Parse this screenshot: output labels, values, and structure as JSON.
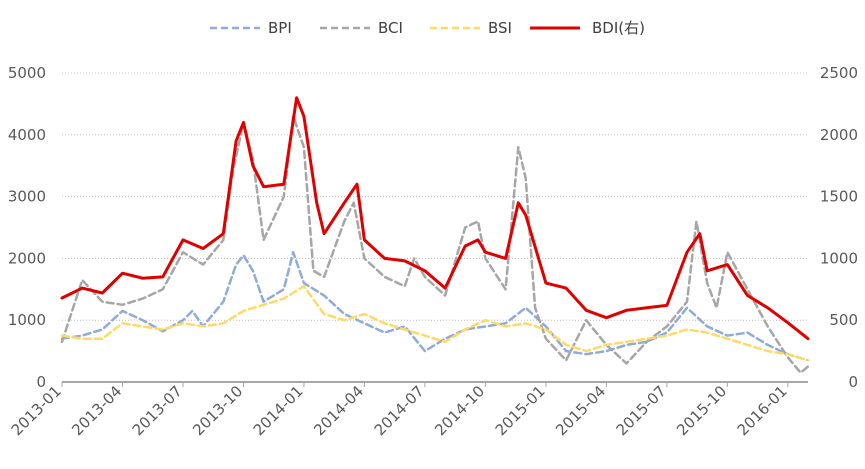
{
  "chart_data": {
    "type": "line",
    "legend_position": "top",
    "grid": "horizontal-dotted",
    "x_ticks": [
      "2013-01",
      "2013-04",
      "2013-07",
      "2013-10",
      "2014-01",
      "2014-04",
      "2014-07",
      "2014-10",
      "2015-01",
      "2015-04",
      "2015-07",
      "2015-10",
      "2016-01"
    ],
    "x_range": [
      "2013-01",
      "2016-02"
    ],
    "y_left": {
      "min": 0,
      "max": 5000,
      "ticks": [
        "0",
        "1000",
        "2000",
        "3000",
        "4000",
        "5000"
      ]
    },
    "y_right": {
      "min": 0,
      "max": 2500,
      "ticks": [
        "0",
        "500",
        "1000",
        "1500",
        "2000",
        "2500"
      ]
    },
    "series": [
      {
        "name": "BPI",
        "axis": "left",
        "color": "#8faadc",
        "dash": "dashed",
        "points": [
          [
            "2013-01",
            700
          ],
          [
            "2013-02",
            750
          ],
          [
            "2013-03",
            850
          ],
          [
            "2013-04",
            1150
          ],
          [
            "2013-05",
            1000
          ],
          [
            "2013-06",
            820
          ],
          [
            "2013-07",
            1000
          ],
          [
            "2013-07-15",
            1150
          ],
          [
            "2013-08",
            900
          ],
          [
            "2013-09",
            1300
          ],
          [
            "2013-09-20",
            1900
          ],
          [
            "2013-10",
            2050
          ],
          [
            "2013-10-15",
            1800
          ],
          [
            "2013-11",
            1300
          ],
          [
            "2013-12",
            1500
          ],
          [
            "2013-12-15",
            2100
          ],
          [
            "2014-01",
            1600
          ],
          [
            "2014-02",
            1400
          ],
          [
            "2014-03",
            1100
          ],
          [
            "2014-04",
            950
          ],
          [
            "2014-05",
            800
          ],
          [
            "2014-06",
            900
          ],
          [
            "2014-07",
            500
          ],
          [
            "2014-08",
            700
          ],
          [
            "2014-09",
            850
          ],
          [
            "2014-10",
            900
          ],
          [
            "2014-11",
            950
          ],
          [
            "2014-12",
            1200
          ],
          [
            "2015-01",
            900
          ],
          [
            "2015-02",
            500
          ],
          [
            "2015-03",
            450
          ],
          [
            "2015-04",
            500
          ],
          [
            "2015-05",
            600
          ],
          [
            "2015-06",
            650
          ],
          [
            "2015-07",
            800
          ],
          [
            "2015-08",
            1200
          ],
          [
            "2015-09",
            900
          ],
          [
            "2015-10",
            750
          ],
          [
            "2015-11",
            800
          ],
          [
            "2015-12",
            600
          ],
          [
            "2016-01",
            450
          ],
          [
            "2016-02",
            350
          ]
        ]
      },
      {
        "name": "BCI",
        "axis": "left",
        "color": "#a6a6a6",
        "dash": "dashed",
        "points": [
          [
            "2013-01",
            650
          ],
          [
            "2013-02",
            1650
          ],
          [
            "2013-03",
            1300
          ],
          [
            "2013-04",
            1250
          ],
          [
            "2013-05",
            1350
          ],
          [
            "2013-06",
            1500
          ],
          [
            "2013-07",
            2100
          ],
          [
            "2013-08",
            1900
          ],
          [
            "2013-09",
            2300
          ],
          [
            "2013-09-15",
            3400
          ],
          [
            "2013-10",
            4200
          ],
          [
            "2013-10-15",
            3600
          ],
          [
            "2013-11",
            2300
          ],
          [
            "2013-12",
            3000
          ],
          [
            "2013-12-15",
            4300
          ],
          [
            "2014-01",
            3800
          ],
          [
            "2014-01-15",
            1800
          ],
          [
            "2014-02",
            1700
          ],
          [
            "2014-03",
            2600
          ],
          [
            "2014-03-15",
            2900
          ],
          [
            "2014-04",
            2000
          ],
          [
            "2014-05",
            1700
          ],
          [
            "2014-06",
            1550
          ],
          [
            "2014-06-15",
            2000
          ],
          [
            "2014-07",
            1700
          ],
          [
            "2014-08",
            1400
          ],
          [
            "2014-09",
            2500
          ],
          [
            "2014-09-20",
            2600
          ],
          [
            "2014-10",
            2000
          ],
          [
            "2014-11",
            1500
          ],
          [
            "2014-11-20",
            3800
          ],
          [
            "2014-12",
            3300
          ],
          [
            "2014-12-15",
            1200
          ],
          [
            "2015-01",
            700
          ],
          [
            "2015-02",
            350
          ],
          [
            "2015-03",
            1000
          ],
          [
            "2015-04",
            600
          ],
          [
            "2015-05",
            300
          ],
          [
            "2015-06",
            650
          ],
          [
            "2015-07",
            900
          ],
          [
            "2015-08",
            1300
          ],
          [
            "2015-08-15",
            2600
          ],
          [
            "2015-09",
            1600
          ],
          [
            "2015-09-15",
            1200
          ],
          [
            "2015-10",
            2100
          ],
          [
            "2015-11",
            1500
          ],
          [
            "2015-12",
            900
          ],
          [
            "2016-01",
            400
          ],
          [
            "2016-01-20",
            150
          ],
          [
            "2016-02",
            250
          ]
        ]
      },
      {
        "name": "BSI",
        "axis": "left",
        "color": "#ffd966",
        "dash": "dashed",
        "points": [
          [
            "2013-01",
            750
          ],
          [
            "2013-02",
            700
          ],
          [
            "2013-03",
            700
          ],
          [
            "2013-04",
            950
          ],
          [
            "2013-05",
            900
          ],
          [
            "2013-06",
            850
          ],
          [
            "2013-07",
            950
          ],
          [
            "2013-08",
            900
          ],
          [
            "2013-09",
            950
          ],
          [
            "2013-10",
            1150
          ],
          [
            "2013-11",
            1250
          ],
          [
            "2013-12",
            1350
          ],
          [
            "2014-01",
            1550
          ],
          [
            "2014-02",
            1100
          ],
          [
            "2014-03",
            1000
          ],
          [
            "2014-04",
            1100
          ],
          [
            "2014-05",
            950
          ],
          [
            "2014-06",
            850
          ],
          [
            "2014-07",
            750
          ],
          [
            "2014-08",
            650
          ],
          [
            "2014-09",
            850
          ],
          [
            "2014-10",
            1000
          ],
          [
            "2014-11",
            900
          ],
          [
            "2014-12",
            950
          ],
          [
            "2015-01",
            850
          ],
          [
            "2015-02",
            600
          ],
          [
            "2015-03",
            500
          ],
          [
            "2015-04",
            600
          ],
          [
            "2015-05",
            650
          ],
          [
            "2015-06",
            700
          ],
          [
            "2015-07",
            750
          ],
          [
            "2015-08",
            850
          ],
          [
            "2015-09",
            800
          ],
          [
            "2015-10",
            700
          ],
          [
            "2015-11",
            600
          ],
          [
            "2015-12",
            500
          ],
          [
            "2016-01",
            450
          ],
          [
            "2016-02",
            350
          ]
        ]
      },
      {
        "name": "BDI(右)",
        "axis": "right",
        "color": "#e00000",
        "dash": "solid",
        "points": [
          [
            "2013-01",
            680
          ],
          [
            "2013-02",
            760
          ],
          [
            "2013-03",
            720
          ],
          [
            "2013-04",
            880
          ],
          [
            "2013-05",
            840
          ],
          [
            "2013-06",
            850
          ],
          [
            "2013-07",
            1150
          ],
          [
            "2013-08",
            1080
          ],
          [
            "2013-09",
            1200
          ],
          [
            "2013-09-20",
            1950
          ],
          [
            "2013-10",
            2100
          ],
          [
            "2013-10-15",
            1750
          ],
          [
            "2013-11",
            1580
          ],
          [
            "2013-12",
            1600
          ],
          [
            "2013-12-20",
            2300
          ],
          [
            "2014-01",
            2150
          ],
          [
            "2014-01-20",
            1450
          ],
          [
            "2014-02",
            1200
          ],
          [
            "2014-03",
            1450
          ],
          [
            "2014-03-20",
            1600
          ],
          [
            "2014-04",
            1150
          ],
          [
            "2014-05",
            1000
          ],
          [
            "2014-06",
            980
          ],
          [
            "2014-07",
            900
          ],
          [
            "2014-08",
            760
          ],
          [
            "2014-09",
            1100
          ],
          [
            "2014-09-20",
            1150
          ],
          [
            "2014-10",
            1050
          ],
          [
            "2014-11",
            1000
          ],
          [
            "2014-11-20",
            1450
          ],
          [
            "2014-12",
            1350
          ],
          [
            "2015-01",
            800
          ],
          [
            "2015-02",
            760
          ],
          [
            "2015-03",
            580
          ],
          [
            "2015-04",
            520
          ],
          [
            "2015-05",
            580
          ],
          [
            "2015-06",
            600
          ],
          [
            "2015-07",
            620
          ],
          [
            "2015-08",
            1050
          ],
          [
            "2015-08-20",
            1200
          ],
          [
            "2015-09",
            900
          ],
          [
            "2015-10",
            950
          ],
          [
            "2015-11",
            700
          ],
          [
            "2015-12",
            600
          ],
          [
            "2016-01",
            480
          ],
          [
            "2016-02",
            350
          ]
        ]
      }
    ]
  }
}
